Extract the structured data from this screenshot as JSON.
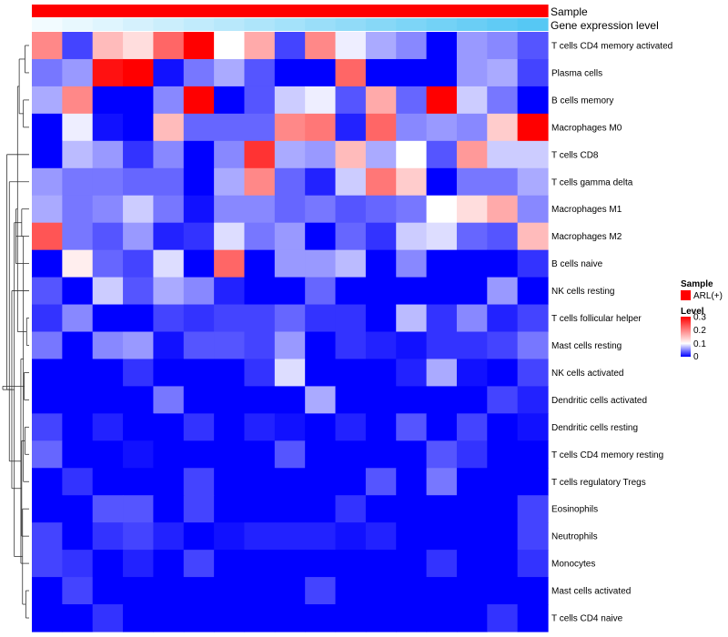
{
  "chart_data": {
    "type": "heatmap",
    "rows": [
      "T cells CD4 memory activated",
      "Plasma cells",
      "B cells memory",
      "Macrophages M0",
      "T cells CD8",
      "T cells gamma delta",
      "Macrophages M1",
      "Macrophages M2",
      "B cells naive",
      "NK cells resting",
      "T cells follicular helper",
      "Mast cells resting",
      "NK cells activated",
      "Dendritic cells activated",
      "Dendritic cells resting",
      "T cells CD4 memory resting",
      "T cells regulatory  Tregs",
      "Eosinophils",
      "Neutrophils",
      "Monocytes",
      "Mast cells activated",
      "T cells CD4 naive"
    ],
    "values": [
      [
        0.22,
        0.04,
        0.19,
        0.17,
        0.24,
        0.3,
        0.15,
        0.2,
        0.04,
        0.22,
        0.14,
        0.1,
        0.08,
        0.0,
        0.09,
        0.08,
        0.05
      ],
      [
        0.07,
        0.09,
        0.29,
        0.3,
        0.01,
        0.07,
        0.1,
        0.05,
        0.0,
        0.0,
        0.24,
        0.0,
        0.0,
        0.0,
        0.09,
        0.1,
        0.04
      ],
      [
        0.1,
        0.22,
        0.0,
        0.0,
        0.08,
        0.3,
        0.0,
        0.05,
        0.12,
        0.14,
        0.05,
        0.2,
        0.06,
        0.3,
        0.12,
        0.07,
        0.0
      ],
      [
        0.0,
        0.14,
        0.01,
        0.0,
        0.19,
        0.06,
        0.06,
        0.06,
        0.22,
        0.23,
        0.02,
        0.24,
        0.08,
        0.09,
        0.08,
        0.18,
        0.3
      ],
      [
        0.0,
        0.11,
        0.09,
        0.03,
        0.08,
        0.0,
        0.08,
        0.27,
        0.1,
        0.09,
        0.19,
        0.1,
        0.15,
        0.05,
        0.21,
        0.12,
        0.12
      ],
      [
        0.09,
        0.07,
        0.07,
        0.06,
        0.06,
        0.0,
        0.1,
        0.22,
        0.06,
        0.02,
        0.12,
        0.23,
        0.18,
        0.0,
        0.07,
        0.07,
        0.1
      ],
      [
        0.1,
        0.07,
        0.08,
        0.12,
        0.07,
        0.01,
        0.08,
        0.08,
        0.06,
        0.07,
        0.05,
        0.06,
        0.07,
        0.15,
        0.17,
        0.2,
        0.08
      ],
      [
        0.25,
        0.07,
        0.05,
        0.09,
        0.02,
        0.03,
        0.13,
        0.07,
        0.09,
        0.0,
        0.06,
        0.03,
        0.12,
        0.13,
        0.06,
        0.05,
        0.19
      ],
      [
        0.0,
        0.16,
        0.06,
        0.04,
        0.13,
        0.0,
        0.24,
        0.0,
        0.09,
        0.09,
        0.11,
        0.0,
        0.08,
        0.0,
        0.0,
        0.0,
        0.03
      ],
      [
        0.05,
        0.0,
        0.12,
        0.05,
        0.1,
        0.08,
        0.02,
        0.0,
        0.0,
        0.06,
        0.0,
        0.0,
        0.0,
        0.0,
        0.0,
        0.09,
        0.0
      ],
      [
        0.03,
        0.08,
        0.0,
        0.0,
        0.04,
        0.03,
        0.04,
        0.04,
        0.06,
        0.03,
        0.03,
        0.0,
        0.11,
        0.03,
        0.08,
        0.02,
        0.04
      ],
      [
        0.07,
        0.0,
        0.08,
        0.09,
        0.01,
        0.05,
        0.05,
        0.04,
        0.09,
        0.0,
        0.03,
        0.02,
        0.01,
        0.03,
        0.03,
        0.04,
        0.07
      ],
      [
        0.0,
        0.0,
        0.0,
        0.03,
        0.0,
        0.0,
        0.0,
        0.03,
        0.13,
        0.0,
        0.0,
        0.0,
        0.02,
        0.1,
        0.01,
        0.0,
        0.04
      ],
      [
        0.0,
        0.0,
        0.0,
        0.0,
        0.07,
        0.0,
        0.0,
        0.0,
        0.0,
        0.1,
        0.0,
        0.0,
        0.0,
        0.0,
        0.0,
        0.04,
        0.02
      ],
      [
        0.04,
        0.0,
        0.02,
        0.0,
        0.0,
        0.03,
        0.0,
        0.02,
        0.01,
        0.0,
        0.02,
        0.0,
        0.05,
        0.0,
        0.04,
        0.0,
        0.01
      ],
      [
        0.06,
        0.0,
        0.0,
        0.01,
        0.0,
        0.0,
        0.0,
        0.0,
        0.05,
        0.0,
        0.0,
        0.0,
        0.0,
        0.05,
        0.03,
        0.0,
        0.0
      ],
      [
        0.0,
        0.03,
        0.0,
        0.0,
        0.0,
        0.04,
        0.0,
        0.0,
        0.0,
        0.0,
        0.0,
        0.05,
        0.0,
        0.07,
        0.0,
        0.0,
        0.0
      ],
      [
        0.0,
        0.0,
        0.05,
        0.05,
        0.0,
        0.04,
        0.0,
        0.0,
        0.0,
        0.0,
        0.03,
        0.0,
        0.0,
        0.0,
        0.0,
        0.0,
        0.04
      ],
      [
        0.04,
        0.0,
        0.03,
        0.04,
        0.02,
        0.0,
        0.01,
        0.02,
        0.02,
        0.02,
        0.01,
        0.02,
        0.0,
        0.0,
        0.0,
        0.0,
        0.04
      ],
      [
        0.04,
        0.03,
        0.0,
        0.02,
        0.0,
        0.04,
        0.0,
        0.0,
        0.0,
        0.0,
        0.0,
        0.0,
        0.0,
        0.03,
        0.0,
        0.0,
        0.03
      ],
      [
        0.0,
        0.04,
        0.0,
        0.0,
        0.0,
        0.0,
        0.0,
        0.0,
        0.0,
        0.04,
        0.0,
        0.0,
        0.0,
        0.0,
        0.0,
        0.0,
        0.0
      ],
      [
        0.0,
        0.0,
        0.03,
        0.0,
        0.0,
        0.0,
        0.0,
        0.0,
        0.0,
        0.0,
        0.0,
        0.0,
        0.0,
        0.0,
        0.0,
        0.03,
        0.0
      ]
    ],
    "column_annotations": [
      {
        "name": "Sample",
        "values": [
          "ARL(+)",
          "ARL(+)",
          "ARL(+)",
          "ARL(+)",
          "ARL(+)",
          "ARL(+)",
          "ARL(+)",
          "ARL(+)",
          "ARL(+)",
          "ARL(+)",
          "ARL(+)",
          "ARL(+)",
          "ARL(+)",
          "ARL(+)",
          "ARL(+)",
          "ARL(+)",
          "ARL(+)"
        ],
        "color": "#ff0000"
      },
      {
        "name": "Gene expression level",
        "values": [
          1,
          2,
          3,
          4,
          5,
          6,
          7,
          8,
          9,
          10,
          11,
          12,
          13,
          14,
          15,
          16,
          17
        ],
        "color_low": "#f2fbff",
        "color_high": "#56c8f4"
      }
    ],
    "legend": {
      "position": "right",
      "sample_title": "Sample",
      "sample_entries": [
        {
          "label": "ARL(+)",
          "color": "#ff0000"
        }
      ],
      "level_title": "Level",
      "level_ticks": [
        "0.3",
        "0.2",
        "0.1",
        "0"
      ],
      "level_range": [
        0,
        0.3
      ]
    },
    "color_scale": {
      "low": "#0000ff",
      "mid": "#ffffff",
      "high": "#ff0000",
      "min": 0,
      "max": 0.3
    },
    "row_dendrogram": {
      "merges": [
        [
          0,
          1,
          0.5
        ],
        [
          2,
          3,
          0.7
        ],
        [
          22,
          23,
          1.2
        ],
        [
          10,
          11,
          0.3
        ],
        [
          12,
          13,
          0.6
        ],
        [
          24,
          25,
          1.4
        ],
        [
          6,
          7,
          0.9
        ],
        [
          27,
          8,
          1.6
        ],
        [
          20,
          21,
          0.4
        ],
        [
          14,
          15,
          0.5
        ],
        [
          29,
          16,
          0.7
        ],
        [
          30,
          17,
          0.8
        ],
        [
          31,
          18,
          0.9
        ],
        [
          32,
          19,
          1.0
        ],
        [
          33,
          28,
          1.8
        ],
        [
          34,
          9,
          2.1
        ],
        [
          35,
          5,
          2.4
        ],
        [
          36,
          4,
          2.7
        ],
        [
          37,
          26,
          3.2
        ]
      ]
    }
  }
}
